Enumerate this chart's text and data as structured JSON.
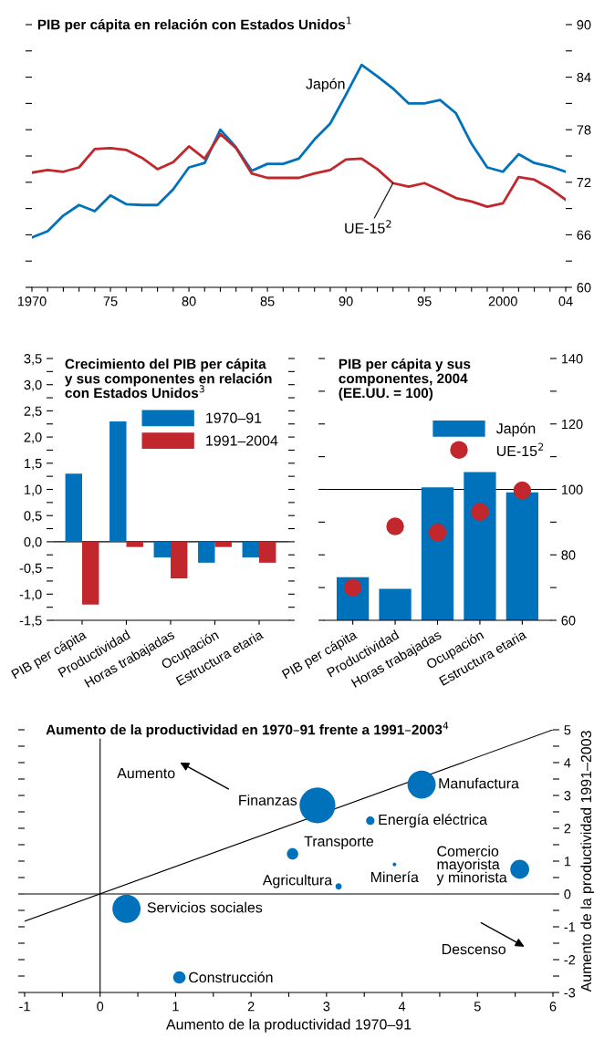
{
  "chart_data": [
    {
      "type": "line",
      "title": "PIB per cápita en relación con Estados Unidos$^{1}$",
      "x": [
        1970,
        1971,
        1972,
        1973,
        1974,
        1975,
        1976,
        1977,
        1978,
        1979,
        1980,
        1981,
        1982,
        1983,
        1984,
        1985,
        1986,
        1987,
        1988,
        1989,
        1990,
        1991,
        1992,
        1993,
        1994,
        1995,
        1996,
        1997,
        1998,
        1999,
        2000,
        2001,
        2002,
        2003,
        2004
      ],
      "series": [
        {
          "name": "Japón",
          "color": "#0072bc",
          "values": [
            65.7,
            66.4,
            68.2,
            69.4,
            68.7,
            70.5,
            69.5,
            69.4,
            69.4,
            71.2,
            73.7,
            74.2,
            78.0,
            76.0,
            73.3,
            74.1,
            74.1,
            74.7,
            76.9,
            78.7,
            82.0,
            85.4,
            84.1,
            82.7,
            81.0,
            81.0,
            81.4,
            79.9,
            76.4,
            73.7,
            73.2,
            75.2,
            74.2,
            73.8,
            73.2
          ]
        },
        {
          "name": "UE-15$^{2}$",
          "color": "#c1272d",
          "values": [
            73.1,
            73.4,
            73.2,
            73.7,
            75.8,
            75.9,
            75.7,
            74.8,
            73.5,
            74.3,
            76.1,
            74.7,
            77.5,
            75.9,
            73.0,
            72.5,
            72.5,
            72.5,
            73.0,
            73.4,
            74.6,
            74.7,
            73.5,
            71.9,
            71.5,
            71.9,
            71.1,
            70.2,
            69.8,
            69.2,
            69.6,
            72.6,
            72.3,
            71.3,
            70.0
          ]
        }
      ],
      "xlim": [
        1970,
        2004
      ],
      "ylim": [
        60,
        90
      ],
      "xticks": [
        1970,
        {
          "value": 1971,
          "label": null
        },
        {
          "value": 1972,
          "label": null
        },
        {
          "value": 1973,
          "label": null
        },
        {
          "value": 1974,
          "label": null
        },
        {
          "value": 1975,
          "label": "75"
        },
        {
          "value": 1976,
          "label": null
        },
        {
          "value": 1977,
          "label": null
        },
        {
          "value": 1978,
          "label": null
        },
        {
          "value": 1979,
          "label": null
        },
        {
          "value": 1980,
          "label": "80"
        },
        {
          "value": 1981,
          "label": null
        },
        {
          "value": 1982,
          "label": null
        },
        {
          "value": 1983,
          "label": null
        },
        {
          "value": 1984,
          "label": null
        },
        {
          "value": 1985,
          "label": "85"
        },
        {
          "value": 1986,
          "label": null
        },
        {
          "value": 1987,
          "label": null
        },
        {
          "value": 1988,
          "label": null
        },
        {
          "value": 1989,
          "label": null
        },
        {
          "value": 1990,
          "label": "90"
        },
        {
          "value": 1991,
          "label": null
        },
        {
          "value": 1992,
          "label": null
        },
        {
          "value": 1993,
          "label": null
        },
        {
          "value": 1994,
          "label": null
        },
        {
          "value": 1995,
          "label": "95"
        },
        {
          "value": 1996,
          "label": null
        },
        {
          "value": 1997,
          "label": null
        },
        {
          "value": 1998,
          "label": null
        },
        {
          "value": 1999,
          "label": null
        },
        2000,
        {
          "value": 2001,
          "label": null
        },
        {
          "value": 2002,
          "label": null
        },
        {
          "value": 2003,
          "label": null
        },
        {
          "value": 2004,
          "label": "04"
        }
      ],
      "yticks": [
        60,
        {
          "value": 63,
          "label": null
        },
        66,
        {
          "value": 69,
          "label": null
        },
        72,
        {
          "value": 75,
          "label": null
        },
        78,
        {
          "value": 81,
          "label": null
        },
        84,
        {
          "value": 87,
          "label": null
        },
        90
      ],
      "line_style": "solid",
      "marker": "none",
      "grid": false
    },
    {
      "type": "bar",
      "title": "Crecimiento del PIB per cápita\ny sus componentes en relación\ncon Estados Unidos$^{3}$",
      "categories": [
        "PIB per cápita",
        "Productividad",
        "Horas trabajadas",
        "Ocupación",
        "Estructura etaria"
      ],
      "series": [
        {
          "name": "1970–91",
          "color": "#0072bc",
          "values": [
            1.3,
            2.3,
            -0.3,
            -0.4,
            -0.3
          ]
        },
        {
          "name": "1991–2004",
          "color": "#c1272d",
          "values": [
            -1.2,
            -0.1,
            -0.7,
            -0.1,
            -0.4
          ]
        }
      ],
      "ylim": [
        -1.5,
        3.5
      ],
      "yticks": [
        {
          "value": -1.5,
          "label": "-1,5"
        },
        {
          "value": -1.25,
          "label": null
        },
        {
          "value": -1.0,
          "label": "-1,0"
        },
        {
          "value": -0.75,
          "label": null
        },
        {
          "value": -0.5,
          "label": "-0,5"
        },
        {
          "value": -0.25,
          "label": null
        },
        {
          "value": 0,
          "label": "0,0"
        },
        {
          "value": 0.25,
          "label": null
        },
        {
          "value": 0.5,
          "label": "0,5"
        },
        {
          "value": 0.75,
          "label": null
        },
        {
          "value": 1.0,
          "label": "1,0"
        },
        {
          "value": 1.25,
          "label": null
        },
        {
          "value": 1.5,
          "label": "1,5"
        },
        {
          "value": 1.75,
          "label": null
        },
        {
          "value": 2.0,
          "label": "2,0"
        },
        {
          "value": 2.25,
          "label": null
        },
        {
          "value": 2.5,
          "label": "2,5"
        },
        {
          "value": 2.75,
          "label": null
        },
        {
          "value": 3.0,
          "label": "3,0"
        },
        {
          "value": 3.25,
          "label": null
        },
        {
          "value": 3.5,
          "label": "3,5"
        }
      ],
      "ref_lines": [
        {
          "axis": "y",
          "value": 0,
          "color": "#000000"
        }
      ],
      "grid": false,
      "legend": "top right"
    },
    {
      "type": "bar",
      "title": "PIB per cápita y sus\ncomponentes, 2004\n(EE.UU. = 100)",
      "categories": [
        "PIB per cápita",
        "Productividad",
        "Horas trabajadas",
        "Ocupación",
        "Estructura etaria"
      ],
      "series": [
        {
          "name": "Japón",
          "type": "bar",
          "color": "#0072bc",
          "values": [
            73.2,
            69.6,
            100.6,
            105.3,
            99.1
          ]
        },
        {
          "name": "UE-15$^{2}$",
          "type": "scatter",
          "color": "#c1272d",
          "x": [
            "PIB per cápita",
            "Productividad",
            "Horas trabajadas",
            "Ocupación",
            "Estructura etaria"
          ],
          "values": [
            70.0,
            88.7,
            86.8,
            93.1,
            99.7
          ]
        }
      ],
      "ylim": [
        60,
        140
      ],
      "yticks": [
        60,
        {
          "value": 70,
          "label": null
        },
        80,
        {
          "value": 90,
          "label": null
        },
        100,
        {
          "value": 110,
          "label": null
        },
        120,
        {
          "value": 130,
          "label": null
        },
        140
      ],
      "ref_lines": [
        {
          "axis": "y",
          "value": 100,
          "color": "#000000"
        }
      ],
      "marker": "circle",
      "grid": false,
      "legend": "top right"
    },
    {
      "type": "bubble",
      "title": "Aumento de la productividad en 1970–91 frente a 1991–2003$^{4}$",
      "xlabel": "Aumento de la productividad 1970–91",
      "ylabel": "Aumento de la productividad 1991–2003",
      "series": [
        {
          "type": "bubble",
          "color": "#0072bc",
          "x": [
            2.88,
            4.26,
            3.58,
            2.55,
            3.9,
            3.16,
            5.56,
            0.35,
            1.05
          ],
          "values": [
            2.7,
            3.33,
            2.23,
            1.22,
            0.9,
            0.23,
            0.75,
            -0.45,
            -2.54
          ],
          "sizes": [
            1,
            0.62,
            0.055,
            0.1,
            0.011,
            0.03,
            0.28,
            0.62,
            0.12
          ]
        },
        {
          "type": "line",
          "color": "#000000",
          "x": [
            -1,
            6
          ],
          "values": [
            -0.83,
            5
          ]
        }
      ],
      "annotations": [
        {
          "text": "Finanzas",
          "x": 2.88,
          "y": 2.7
        },
        {
          "text": "Manufactura",
          "x": 4.26,
          "y": 3.33
        },
        {
          "text": "Energía eléctrica",
          "x": 3.58,
          "y": 2.23
        },
        {
          "text": "Transporte",
          "x": 2.55,
          "y": 1.22
        },
        {
          "text": "Minería",
          "x": 3.9,
          "y": 0.9
        },
        {
          "text": "Agricultura",
          "x": 3.16,
          "y": 0.23
        },
        {
          "text": "Comercio\nmayorista\ny minorista",
          "x": 5.56,
          "y": 0.75
        },
        {
          "text": "Servicios sociales",
          "x": 0.35,
          "y": -0.45
        },
        {
          "text": "Construcción",
          "x": 1.05,
          "y": -2.54
        },
        "Aumento",
        "Descenso"
      ],
      "xlim": [
        -1,
        6
      ],
      "ylim": [
        -3,
        5
      ],
      "xticks": [
        -1,
        {
          "value": -0.5,
          "label": null
        },
        0,
        {
          "value": 0.5,
          "label": null
        },
        1,
        {
          "value": 1.5,
          "label": null
        },
        2,
        {
          "value": 2.5,
          "label": null
        },
        3,
        {
          "value": 3.5,
          "label": null
        },
        4,
        {
          "value": 4.5,
          "label": null
        },
        5,
        {
          "value": 5.5,
          "label": null
        },
        6
      ],
      "yticks": [
        -3,
        {
          "value": -2.5,
          "label": null
        },
        -2,
        {
          "value": -1.5,
          "label": null
        },
        -1,
        {
          "value": -0.5,
          "label": null
        },
        0,
        {
          "value": 0.5,
          "label": null
        },
        1,
        {
          "value": 1.5,
          "label": null
        },
        2,
        {
          "value": 2.5,
          "label": null
        },
        3,
        {
          "value": 3.5,
          "label": null
        },
        4,
        {
          "value": 4.5,
          "label": null
        },
        5
      ],
      "ref_lines": [
        {
          "axis": "y",
          "value": 0,
          "color": "#000000"
        },
        {
          "axis": "x",
          "value": 0,
          "color": "#000000"
        }
      ],
      "grid": false
    }
  ]
}
